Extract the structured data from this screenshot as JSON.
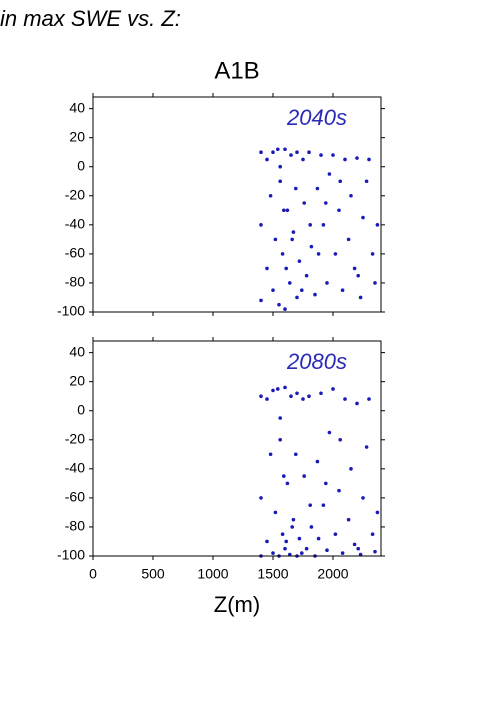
{
  "header": "in max SWE vs. Z:",
  "chart_data": [
    {
      "type": "scatter",
      "title": "A1B",
      "annotation": "2040s",
      "color": "#1a1ab8",
      "annotation_color": "#2a2ab8",
      "xlim": [
        0,
        2400
      ],
      "ylim": [
        -100,
        48
      ],
      "xticks": [
        0,
        500,
        1000,
        1500,
        2000
      ],
      "yticks": [
        -100,
        -80,
        -60,
        -40,
        -20,
        0,
        20,
        40
      ],
      "show_xtick_labels": false,
      "x": [
        1400,
        1400,
        1400,
        1450,
        1450,
        1480,
        1500,
        1500,
        1520,
        1540,
        1550,
        1560,
        1580,
        1600,
        1600,
        1620,
        1640,
        1650,
        1670,
        1700,
        1700,
        1720,
        1750,
        1760,
        1780,
        1800,
        1820,
        1850,
        1870,
        1900,
        1920,
        1950,
        1970,
        2000,
        2020,
        2050,
        2080,
        2100,
        2130,
        2150,
        2180,
        2200,
        2230,
        2250,
        2280,
        2300,
        2330,
        2350,
        2370,
        1560,
        1590,
        1610,
        1660,
        1690,
        1740,
        1810,
        1880,
        1940,
        2060,
        2210
      ],
      "y": [
        10,
        -40,
        -92,
        5,
        -70,
        -20,
        10,
        -85,
        -50,
        12,
        -95,
        -10,
        -60,
        12,
        -98,
        -30,
        -80,
        8,
        -45,
        10,
        -90,
        -65,
        5,
        -25,
        -75,
        10,
        -55,
        -88,
        -15,
        8,
        -40,
        -80,
        -5,
        8,
        -60,
        -30,
        -85,
        5,
        -50,
        -20,
        -70,
        6,
        -90,
        -35,
        -10,
        5,
        -60,
        -80,
        -40,
        0,
        -30,
        -70,
        -50,
        -15,
        -85,
        -40,
        -60,
        -25,
        -10,
        -75
      ]
    },
    {
      "type": "scatter",
      "annotation": "2080s",
      "xlabel": "Z(m)",
      "color": "#1a1ab8",
      "annotation_color": "#2a2ab8",
      "xlim": [
        0,
        2400
      ],
      "ylim": [
        -100,
        48
      ],
      "xticks": [
        0,
        500,
        1000,
        1500,
        2000
      ],
      "yticks": [
        -100,
        -80,
        -60,
        -40,
        -20,
        0,
        20,
        40
      ],
      "show_xtick_labels": true,
      "x": [
        1400,
        1400,
        1400,
        1450,
        1450,
        1480,
        1500,
        1500,
        1520,
        1540,
        1550,
        1560,
        1580,
        1600,
        1600,
        1620,
        1640,
        1650,
        1670,
        1700,
        1700,
        1720,
        1750,
        1760,
        1780,
        1800,
        1820,
        1850,
        1870,
        1900,
        1920,
        1950,
        1970,
        2000,
        2020,
        2050,
        2080,
        2100,
        2130,
        2150,
        2180,
        2200,
        2230,
        2250,
        2280,
        2300,
        2330,
        2350,
        2370,
        1560,
        1590,
        1610,
        1660,
        1690,
        1740,
        1810,
        1880,
        1940,
        2060,
        2210
      ],
      "y": [
        10,
        -60,
        -100,
        8,
        -90,
        -30,
        14,
        -98,
        -70,
        15,
        -100,
        -20,
        -85,
        16,
        -95,
        -50,
        -99,
        10,
        -75,
        12,
        -100,
        -88,
        8,
        -45,
        -95,
        10,
        -80,
        -100,
        -35,
        12,
        -65,
        -96,
        -15,
        15,
        -85,
        -55,
        -98,
        8,
        -75,
        -40,
        -92,
        5,
        -99,
        -60,
        -25,
        8,
        -85,
        -97,
        -70,
        -5,
        -45,
        -90,
        -80,
        -30,
        -98,
        -65,
        -88,
        -50,
        -20,
        -95
      ]
    }
  ]
}
